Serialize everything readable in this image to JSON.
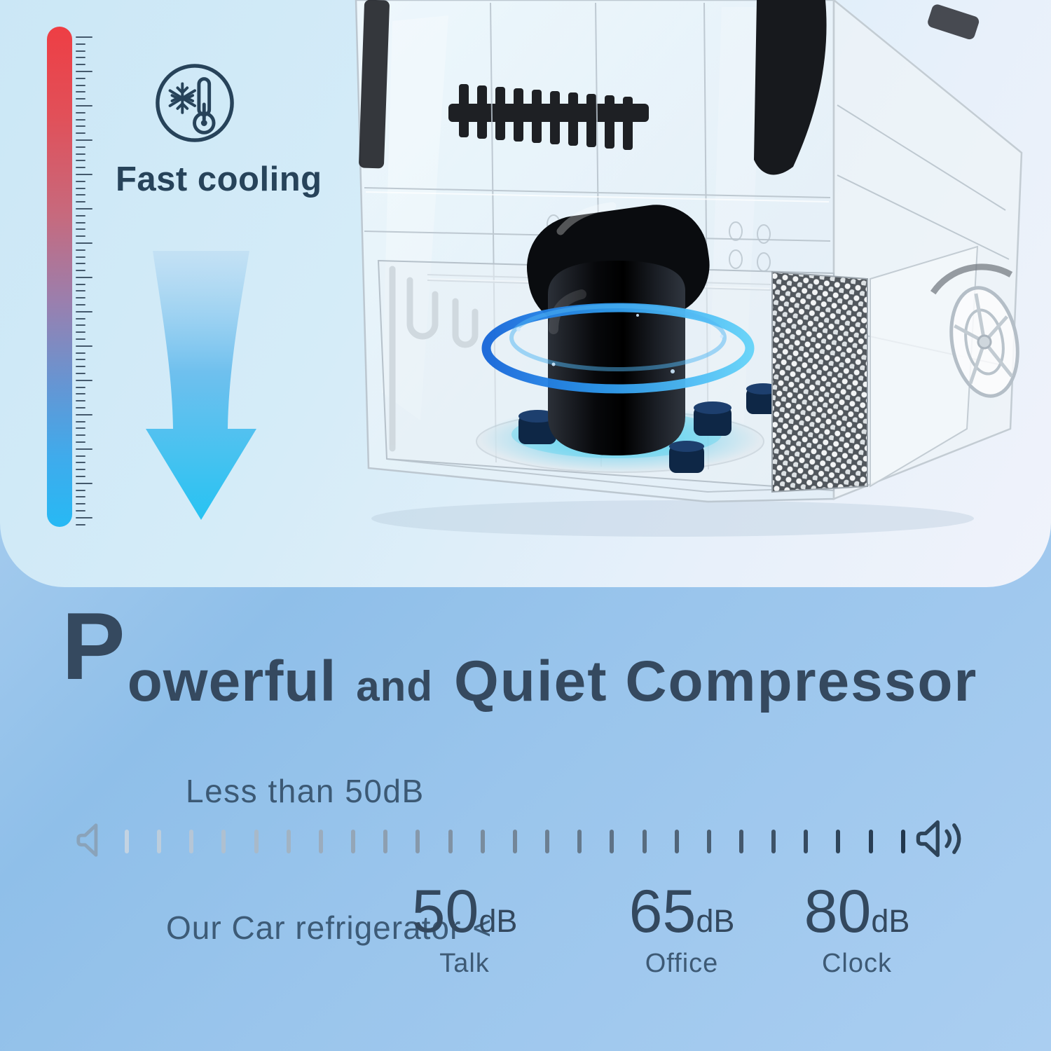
{
  "colors": {
    "accent_dark": "#35495f",
    "badge_color": "#27435a",
    "card_bg_from": "#cbe7f6",
    "card_bg_to": "#f0f3fb",
    "page_bg_from": "#bedaf4",
    "page_bg_to": "#aacef1",
    "ruler_hot": "#ee3e44",
    "ruler_cold": "#27b9f4",
    "arrow_from": "#bcdcf3",
    "arrow_to": "#27c3f2",
    "compressor_ring_blue": "#2f9bf0",
    "compressor_glow_cyan": "#4fdcf6",
    "sound_tick_from": "#c3d3e2",
    "sound_tick_to": "#22384e"
  },
  "fast_cooling": {
    "label": "Fast cooling",
    "icon": "snowflake-thermometer-icon"
  },
  "temperature_ruler": {
    "tick_count": 72,
    "long_every": 5
  },
  "headline": {
    "drop_cap": "P",
    "word1_rest": "owerful",
    "connector": "and",
    "word2": "Quiet Compressor"
  },
  "noise": {
    "caption": "Less than 50dB",
    "scale": {
      "tick_count": 25,
      "left_icon": "speaker-icon",
      "right_icon": "speaker-waves-icon"
    },
    "comparison": {
      "prefix": "Our Car refrigerator",
      "operator": "<",
      "items": [
        {
          "value": "50",
          "unit": "dB",
          "label": "Talk"
        },
        {
          "value": "65",
          "unit": "dB",
          "label": "Office"
        },
        {
          "value": "80",
          "unit": "dB",
          "label": "Clock"
        }
      ]
    }
  }
}
